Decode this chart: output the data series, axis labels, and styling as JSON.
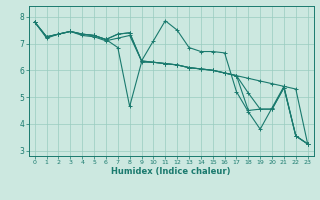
{
  "title": "",
  "xlabel": "Humidex (Indice chaleur)",
  "ylabel": "",
  "xlim": [
    -0.5,
    23.5
  ],
  "ylim": [
    2.8,
    8.4
  ],
  "yticks": [
    3,
    4,
    5,
    6,
    7,
    8
  ],
  "xticks": [
    0,
    1,
    2,
    3,
    4,
    5,
    6,
    7,
    8,
    9,
    10,
    11,
    12,
    13,
    14,
    15,
    16,
    17,
    18,
    19,
    20,
    21,
    22,
    23
  ],
  "bg_color": "#cce8e0",
  "grid_color": "#99ccbf",
  "line_color": "#1a7a6e",
  "lines": [
    [
      7.8,
      7.2,
      7.35,
      7.45,
      7.3,
      7.25,
      7.1,
      7.2,
      7.3,
      6.35,
      6.3,
      6.25,
      6.2,
      6.1,
      6.05,
      6.0,
      5.9,
      5.8,
      5.7,
      5.6,
      5.5,
      5.4,
      5.3,
      3.25
    ],
    [
      7.8,
      7.25,
      7.35,
      7.45,
      7.35,
      7.3,
      7.15,
      7.35,
      7.4,
      6.35,
      7.1,
      7.85,
      7.5,
      6.85,
      6.7,
      6.7,
      6.65,
      5.2,
      4.45,
      3.8,
      4.6,
      5.4,
      3.55,
      3.25
    ],
    [
      7.8,
      7.25,
      7.35,
      7.45,
      7.35,
      7.3,
      7.15,
      6.85,
      4.65,
      6.3,
      6.3,
      6.25,
      6.2,
      6.1,
      6.05,
      6.0,
      5.9,
      5.8,
      5.15,
      4.55,
      4.55,
      5.35,
      3.55,
      3.25
    ],
    [
      7.8,
      7.25,
      7.35,
      7.45,
      7.35,
      7.3,
      7.15,
      7.35,
      7.4,
      6.35,
      6.3,
      6.25,
      6.2,
      6.1,
      6.05,
      6.0,
      5.9,
      5.8,
      4.5,
      4.55,
      4.55,
      5.35,
      3.55,
      3.25
    ]
  ],
  "xlabel_fontsize": 6.0,
  "tick_fontsize_x": 4.5,
  "tick_fontsize_y": 5.5
}
